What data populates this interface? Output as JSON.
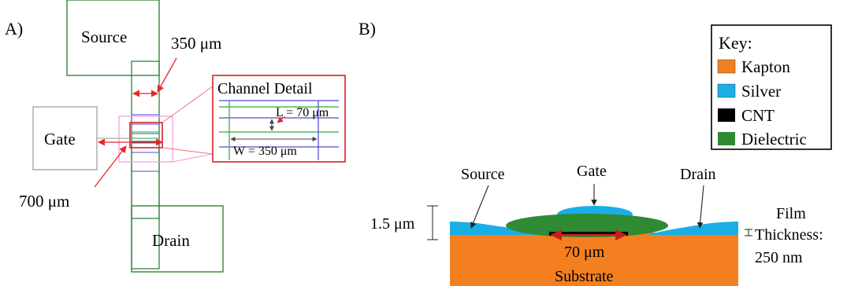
{
  "panel_a": {
    "label": "A)",
    "source_label": "Source",
    "gate_label": "Gate",
    "drain_label": "Drain",
    "dim_width": "350 μm",
    "dim_gap": "700 μm",
    "detail": {
      "title": "Channel Detail",
      "length_label": "L = 70 μm",
      "width_label": "W = 350 μm"
    }
  },
  "panel_b": {
    "label": "B)",
    "key": {
      "title": "Key:",
      "items": [
        {
          "label": "Kapton",
          "color": "#f47f20"
        },
        {
          "label": "Silver",
          "color": "#1aaee6"
        },
        {
          "label": "CNT",
          "color": "#000000"
        },
        {
          "label": "Dielectric",
          "color": "#2f8a34"
        }
      ]
    },
    "source_label": "Source",
    "gate_label": "Gate",
    "drain_label": "Drain",
    "height_label": "1.5 μm",
    "channel_label": "70 μm",
    "substrate_label": "Substrate",
    "film_label_1": "Film",
    "film_label_2": "Thickness:",
    "film_label_3": "250 nm"
  }
}
